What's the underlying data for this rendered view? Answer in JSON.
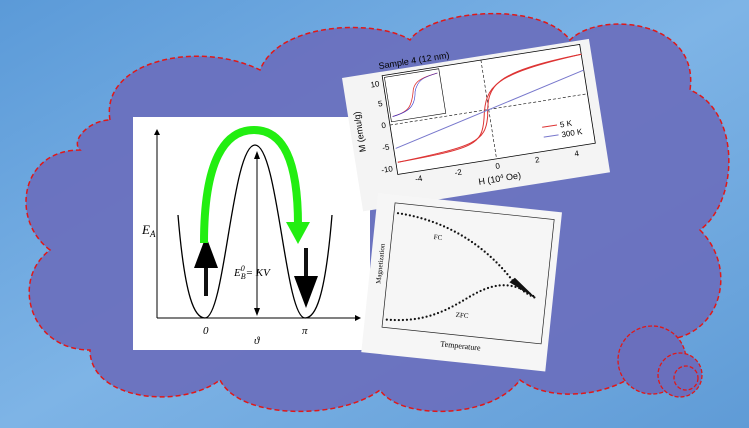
{
  "energy_diagram": {
    "y_label": "E",
    "y_label_sub": "A",
    "barrier_label": "E",
    "barrier_sub": "B",
    "barrier_sup": "0",
    "barrier_rest": "= KV",
    "x_ticks": [
      "0",
      "π"
    ],
    "x_label": "ϑ"
  },
  "hysteresis_plot": {
    "title": "Sample 4 (12 nm)",
    "y_label": "M (emu/g)",
    "x_label": "H (10",
    "x_label_sup": "4",
    "x_label_end": " Oe)",
    "yticks": [
      "10",
      "5",
      "0",
      "-5",
      "-10"
    ],
    "xticks": [
      "-4",
      "-2",
      "0",
      "2",
      "4"
    ],
    "legend": [
      "5 K",
      "300 K"
    ]
  },
  "fc_zfc_plot": {
    "curve_labels": [
      "FC",
      "ZFC"
    ],
    "y_label": "Magnetization",
    "x_label": "Temperature"
  }
}
